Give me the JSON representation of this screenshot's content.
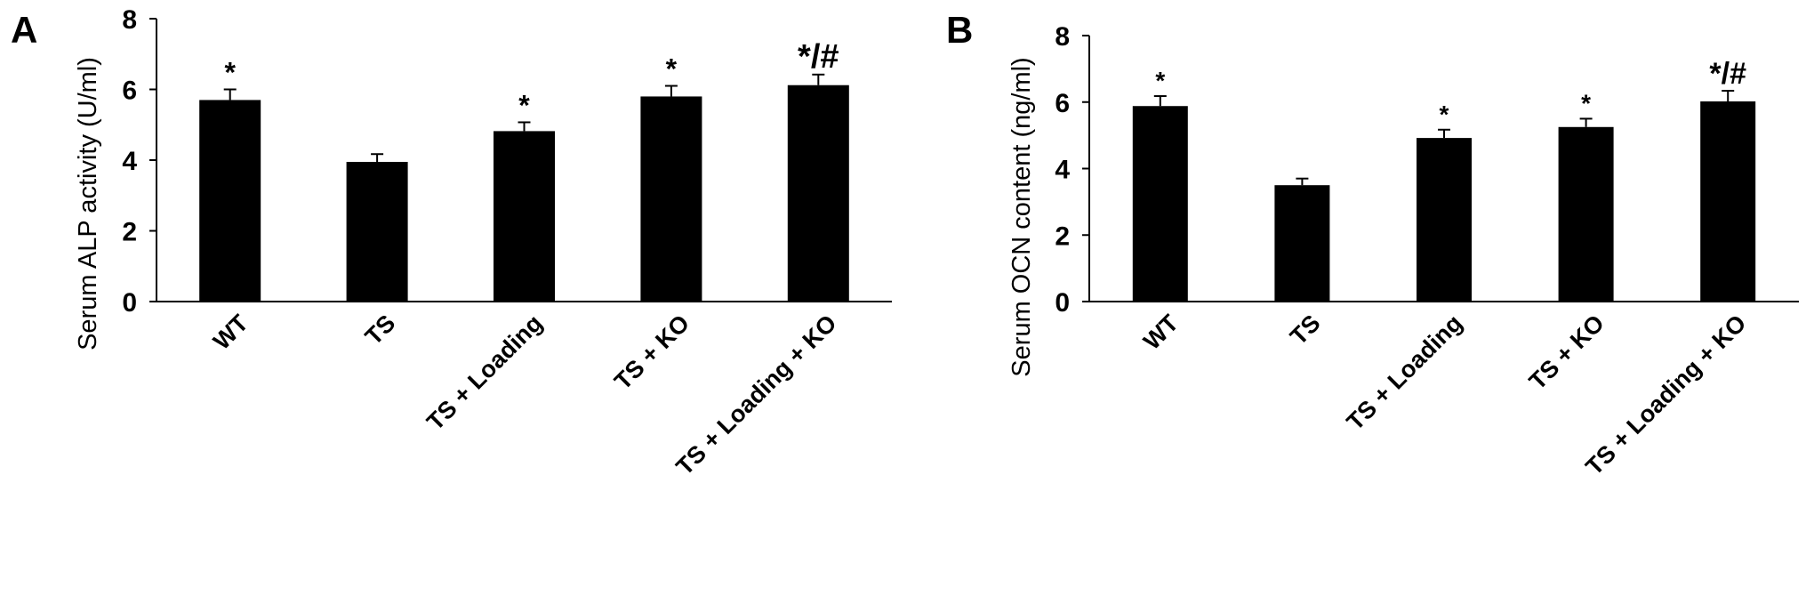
{
  "chart_data": [
    {
      "type": "bar",
      "panel_label": "A",
      "ylabel": "Serum ALP activity  (U/ml)",
      "xlabel": "",
      "categories": [
        "WT",
        "TS",
        "TS + Loading",
        "TS + KO",
        "TS + Loading + KO"
      ],
      "values": [
        5.7,
        3.95,
        4.82,
        5.8,
        6.12
      ],
      "errors": [
        0.3,
        0.22,
        0.25,
        0.3,
        0.3
      ],
      "annotations": [
        "*",
        "",
        "*",
        "*",
        "*/#"
      ],
      "ylim": [
        0,
        8
      ],
      "yticks": [
        "0",
        "2",
        "4",
        "6",
        "8"
      ],
      "bar_color": "#000000",
      "grid": false
    },
    {
      "type": "bar",
      "panel_label": "B",
      "ylabel": "Serum OCN content  (ng/ml)",
      "xlabel": "",
      "categories": [
        "WT",
        "TS",
        "TS + Loading",
        "TS + KO",
        "TS + Loading + KO"
      ],
      "values": [
        5.88,
        3.5,
        4.92,
        5.25,
        6.02
      ],
      "errors": [
        0.3,
        0.2,
        0.25,
        0.25,
        0.32
      ],
      "annotations": [
        "*",
        "",
        "*",
        "*",
        "*/#"
      ],
      "ylim": [
        0,
        8
      ],
      "yticks": [
        "0",
        "2",
        "4",
        "6",
        "8"
      ],
      "bar_color": "#000000",
      "grid": false
    }
  ]
}
